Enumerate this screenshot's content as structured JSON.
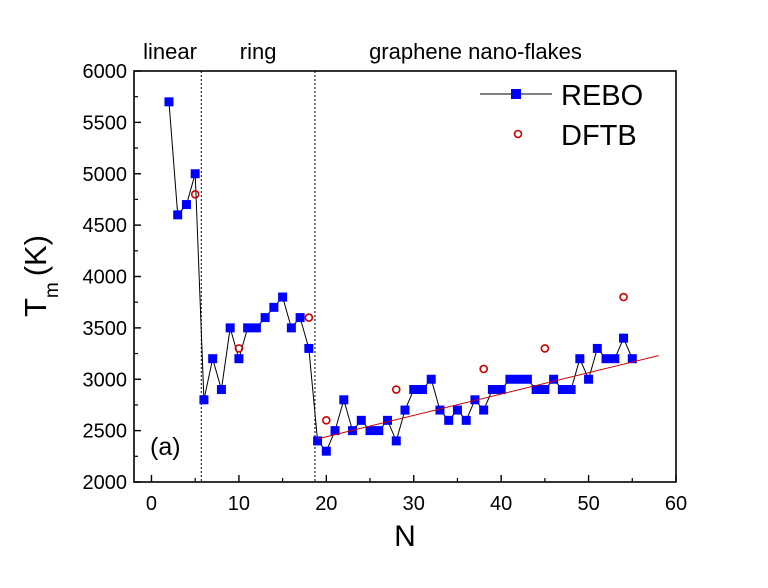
{
  "chart_data": {
    "type": "scatter",
    "panel_label": "(a)",
    "xlabel": "N",
    "ylabel_main": "T",
    "ylabel_sub": "m",
    "ylabel_unit": "(K)",
    "xlim": [
      -2,
      60
    ],
    "ylim": [
      2000,
      6000
    ],
    "x_ticks": [
      0,
      10,
      20,
      30,
      40,
      50,
      60
    ],
    "y_ticks": [
      2000,
      2500,
      3000,
      3500,
      4000,
      4500,
      5000,
      5500,
      6000
    ],
    "regions": [
      {
        "label": "linear",
        "x_start": -2,
        "x_end": 5.7
      },
      {
        "label": "ring",
        "x_start": 5.7,
        "x_end": 18.7
      },
      {
        "label": "graphene nano-flakes",
        "x_start": 18.7,
        "x_end": 60
      }
    ],
    "dividers": [
      5.7,
      18.7
    ],
    "series": [
      {
        "name": "REBO",
        "style": "line+square",
        "color": "#0000ff",
        "line_color": "#000000",
        "x": [
          2,
          3,
          4,
          5,
          6,
          7,
          8,
          9,
          10,
          11,
          12,
          13,
          14,
          15,
          16,
          17,
          18,
          19,
          20,
          21,
          22,
          23,
          24,
          25,
          26,
          27,
          28,
          29,
          30,
          31,
          32,
          33,
          34,
          35,
          36,
          37,
          38,
          39,
          40,
          41,
          42,
          43,
          44,
          45,
          46,
          47,
          48,
          49,
          50,
          51,
          52,
          53,
          54,
          55
        ],
        "y": [
          5700,
          4600,
          4700,
          5000,
          2800,
          3200,
          2900,
          3500,
          3200,
          3500,
          3500,
          3600,
          3700,
          3800,
          3500,
          3600,
          3300,
          2400,
          2300,
          2500,
          2800,
          2500,
          2600,
          2500,
          2500,
          2600,
          2400,
          2700,
          2900,
          2900,
          3000,
          2700,
          2600,
          2700,
          2600,
          2800,
          2700,
          2900,
          2900,
          3000,
          3000,
          3000,
          2900,
          2900,
          3000,
          2900,
          2900,
          3200,
          3000,
          3300,
          3200,
          3200,
          3400,
          3200
        ]
      },
      {
        "name": "DFTB",
        "style": "open-circle",
        "color": "#cc0000",
        "x": [
          5,
          10,
          18,
          20,
          28,
          38,
          45,
          54
        ],
        "y": [
          4800,
          3300,
          3600,
          2600,
          2900,
          3100,
          3300,
          3800
        ]
      },
      {
        "name": "fit",
        "style": "line",
        "color": "#cc0000",
        "x": [
          19,
          58
        ],
        "y": [
          2420,
          3230
        ]
      }
    ]
  }
}
